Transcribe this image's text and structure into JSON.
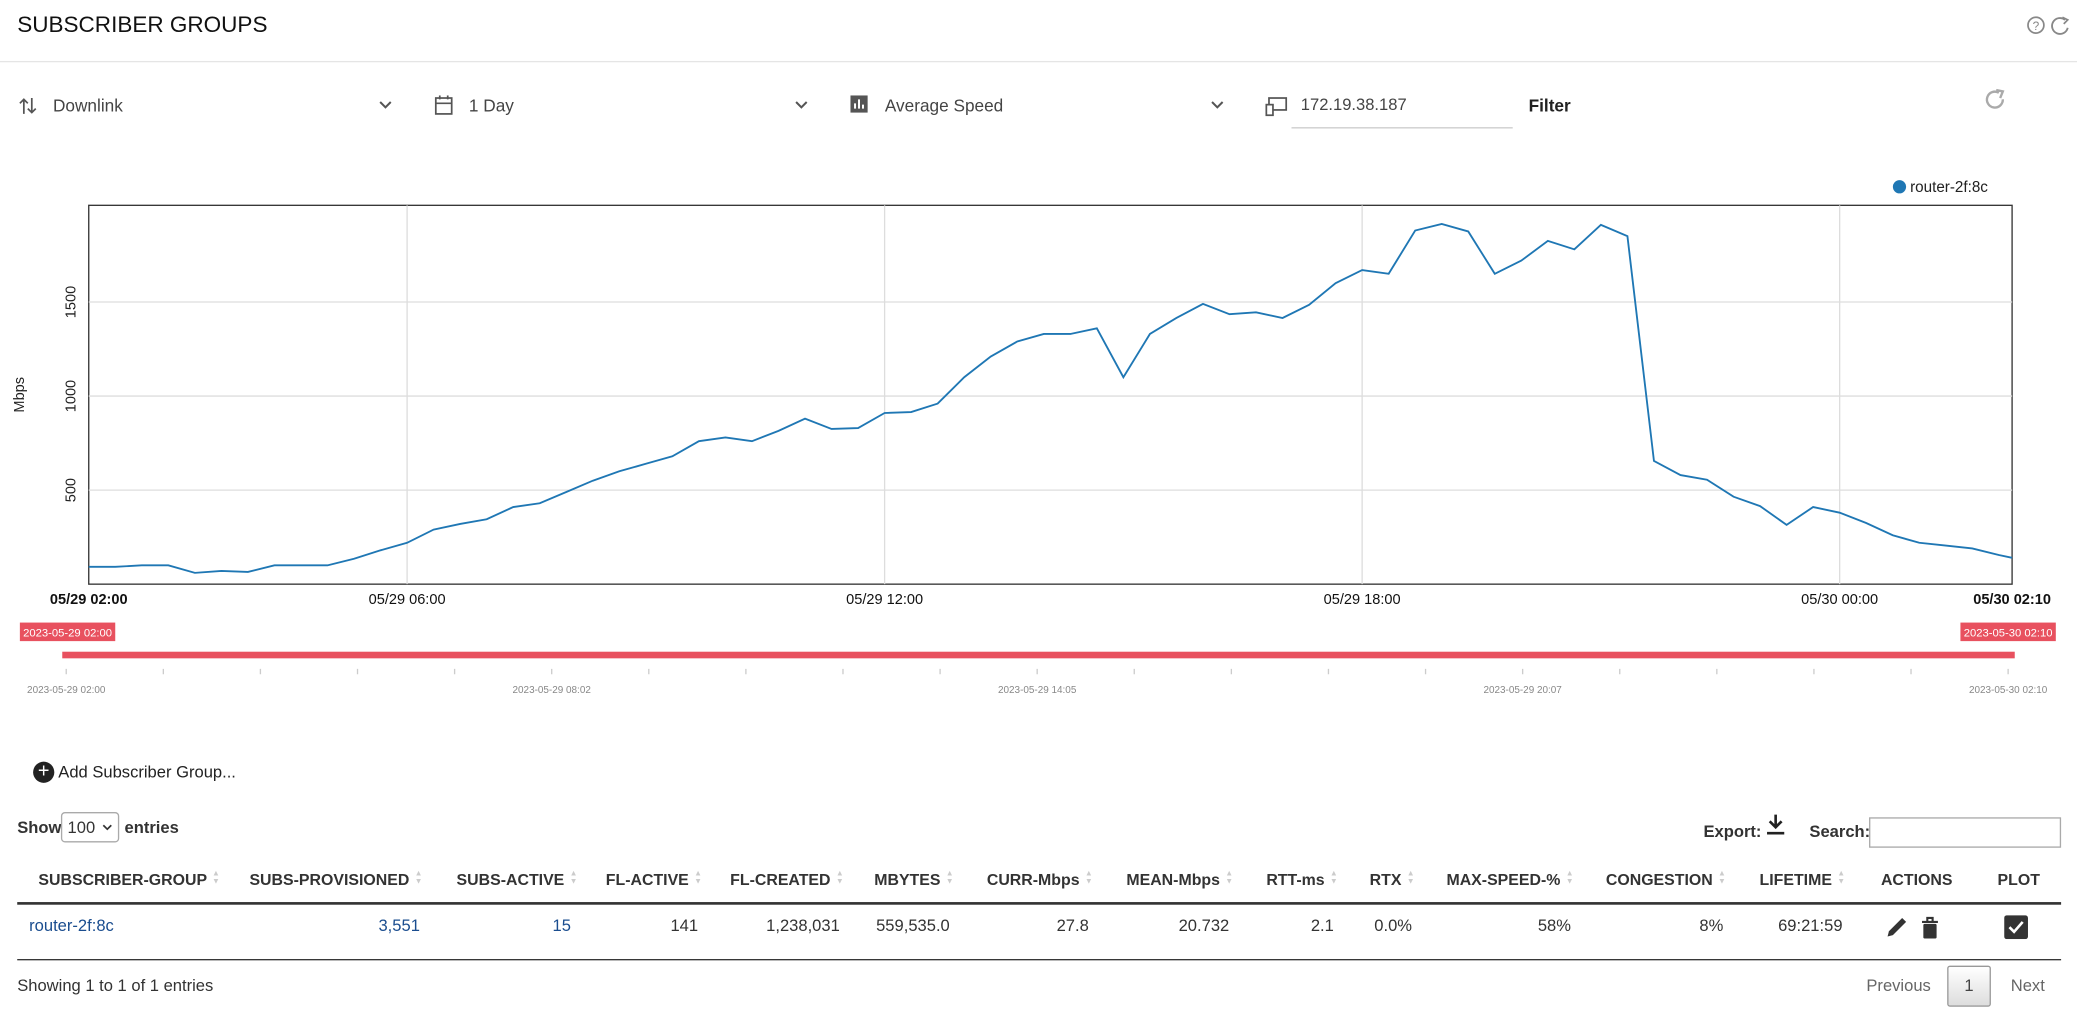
{
  "header": {
    "title": "SUBSCRIBER GROUPS"
  },
  "controls": {
    "direction": "Downlink",
    "period": "1 Day",
    "metric": "Average Speed",
    "filter_input": "172.19.38.187",
    "filter_button": "Filter"
  },
  "chart_data": {
    "type": "line",
    "y_label": "Mbps",
    "x": [
      "05/29 02:00",
      "05/29 02:20",
      "05/29 02:40",
      "05/29 03:00",
      "05/29 03:20",
      "05/29 03:40",
      "05/29 04:00",
      "05/29 04:20",
      "05/29 04:40",
      "05/29 05:00",
      "05/29 05:20",
      "05/29 05:40",
      "05/29 06:00",
      "05/29 06:20",
      "05/29 06:40",
      "05/29 07:00",
      "05/29 07:20",
      "05/29 07:40",
      "05/29 08:00",
      "05/29 08:20",
      "05/29 08:40",
      "05/29 09:00",
      "05/29 09:20",
      "05/29 09:40",
      "05/29 10:00",
      "05/29 10:20",
      "05/29 10:40",
      "05/29 11:00",
      "05/29 11:20",
      "05/29 11:40",
      "05/29 12:00",
      "05/29 12:20",
      "05/29 12:40",
      "05/29 13:00",
      "05/29 13:20",
      "05/29 13:40",
      "05/29 14:00",
      "05/29 14:20",
      "05/29 14:40",
      "05/29 15:00",
      "05/29 15:20",
      "05/29 15:40",
      "05/29 16:00",
      "05/29 16:20",
      "05/29 16:40",
      "05/29 17:00",
      "05/29 17:20",
      "05/29 17:40",
      "05/29 18:00",
      "05/29 18:20",
      "05/29 18:40",
      "05/29 19:00",
      "05/29 19:20",
      "05/29 19:40",
      "05/29 20:00",
      "05/29 20:20",
      "05/29 20:40",
      "05/29 21:00",
      "05/29 21:20",
      "05/29 21:40",
      "05/29 22:00",
      "05/29 22:20",
      "05/29 22:40",
      "05/29 23:00",
      "05/29 23:20",
      "05/29 23:40",
      "05/30 00:00",
      "05/30 00:20",
      "05/30 00:40",
      "05/30 01:00",
      "05/30 01:20",
      "05/30 01:40",
      "05/30 02:00",
      "05/30 02:10"
    ],
    "series": [
      {
        "name": "router-2f:8c",
        "color": "#1f77b4",
        "values": [
          92,
          92,
          100,
          100,
          60,
          70,
          65,
          100,
          100,
          100,
          135,
          180,
          220,
          290,
          320,
          345,
          410,
          430,
          490,
          550,
          600,
          640,
          680,
          760,
          780,
          760,
          815,
          880,
          825,
          830,
          910,
          915,
          960,
          1100,
          1210,
          1290,
          1330,
          1330,
          1360,
          1100,
          1330,
          1415,
          1490,
          1435,
          1445,
          1415,
          1485,
          1600,
          1670,
          1650,
          1880,
          1915,
          1875,
          1650,
          1720,
          1825,
          1780,
          1910,
          1850,
          655,
          580,
          555,
          465,
          415,
          315,
          410,
          380,
          325,
          260,
          220,
          205,
          190,
          155,
          140
        ]
      }
    ],
    "xlim": [
      "05/29 02:00",
      "05/30 02:10"
    ],
    "xticks": [
      "05/29 02:00",
      "05/29 06:00",
      "05/29 12:00",
      "05/29 18:00",
      "05/30 00:00",
      "05/30 02:10"
    ],
    "ylim": [
      0,
      2014
    ],
    "yticks": [
      500,
      1000,
      1500
    ],
    "grid": true
  },
  "range_slider": {
    "start_label": "2023-05-29 02:00",
    "end_label": "2023-05-30 02:10",
    "tick_labels": [
      "2023-05-29 02:00",
      "2023-05-29 08:02",
      "2023-05-29 14:05",
      "2023-05-29 20:07",
      "2023-05-30 02:10"
    ]
  },
  "add_button": "Add Subscriber Group...",
  "table_controls": {
    "show": "Show",
    "page_size": "100",
    "entries": "entries",
    "export": "Export:",
    "search": "Search:"
  },
  "table": {
    "columns": [
      "SUBSCRIBER-GROUP",
      "SUBS-PROVISIONED",
      "SUBS-ACTIVE",
      "FL-ACTIVE",
      "FL-CREATED",
      "MBYTES",
      "CURR-Mbps",
      "MEAN-Mbps",
      "RTT-ms",
      "RTX",
      "MAX-SPEED-%",
      "CONGESTION",
      "LIFETIME",
      "ACTIONS",
      "PLOT"
    ],
    "rows": [
      [
        "router-2f:8c",
        "3,551",
        "15",
        "141",
        "1,238,031",
        "559,535.0",
        "27.8",
        "20.732",
        "2.1",
        "0.0%",
        "58%",
        "8%",
        "69:21:59"
      ]
    ]
  },
  "footer": {
    "info": "Showing 1 to 1 of 1 entries",
    "previous": "Previous",
    "page": "1",
    "next": "Next"
  }
}
